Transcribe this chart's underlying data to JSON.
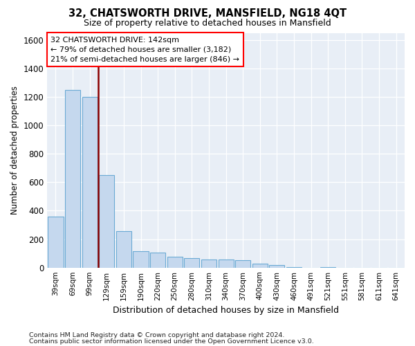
{
  "title": "32, CHATSWORTH DRIVE, MANSFIELD, NG18 4QT",
  "subtitle": "Size of property relative to detached houses in Mansfield",
  "xlabel": "Distribution of detached houses by size in Mansfield",
  "ylabel": "Number of detached properties",
  "bar_color": "#c5d8ee",
  "bar_edge_color": "#6aaad4",
  "background_color": "#e8eef6",
  "grid_color": "#d0d8e4",
  "categories": [
    "39sqm",
    "69sqm",
    "99sqm",
    "129sqm",
    "159sqm",
    "190sqm",
    "220sqm",
    "250sqm",
    "280sqm",
    "310sqm",
    "340sqm",
    "370sqm",
    "400sqm",
    "430sqm",
    "460sqm",
    "491sqm",
    "521sqm",
    "551sqm",
    "581sqm",
    "611sqm",
    "641sqm"
  ],
  "values": [
    360,
    1250,
    1200,
    650,
    258,
    113,
    105,
    75,
    65,
    57,
    55,
    50,
    28,
    20,
    5,
    0,
    5,
    0,
    0,
    0,
    0
  ],
  "ylim": [
    0,
    1650
  ],
  "yticks": [
    0,
    200,
    400,
    600,
    800,
    1000,
    1200,
    1400,
    1600
  ],
  "red_line_x": 2.5,
  "annotation_line1": "32 CHATSWORTH DRIVE: 142sqm",
  "annotation_line2": "← 79% of detached houses are smaller (3,182)",
  "annotation_line3": "21% of semi-detached houses are larger (846) →",
  "footer1": "Contains HM Land Registry data © Crown copyright and database right 2024.",
  "footer2": "Contains public sector information licensed under the Open Government Licence v3.0."
}
